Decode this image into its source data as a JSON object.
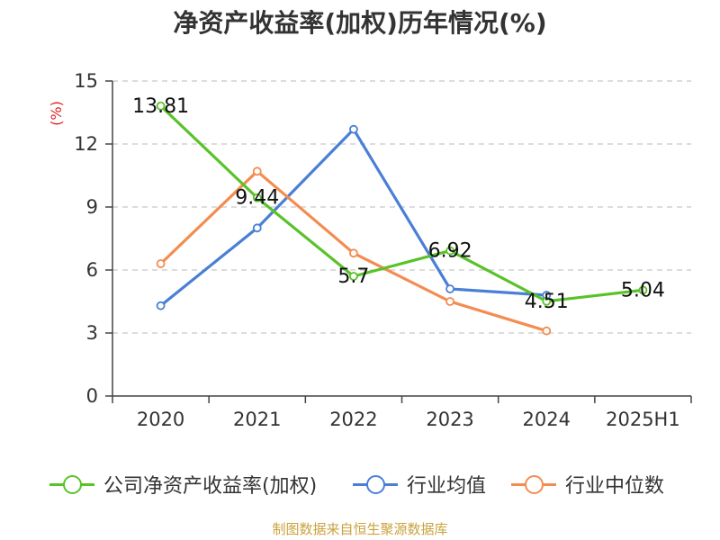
{
  "chart_data": {
    "type": "line",
    "title": "净资产收益率(加权)历年情况(%)",
    "ylabel": "(%)",
    "xlabel": "",
    "categories": [
      "2020",
      "2021",
      "2022",
      "2023",
      "2024",
      "2025H1"
    ],
    "ylim": [
      0,
      15
    ],
    "yticks": [
      0,
      3,
      6,
      9,
      12,
      15
    ],
    "grid": true,
    "legend_position": "bottom",
    "series": [
      {
        "name": "公司净资产收益率(加权)",
        "color": "#5ac229",
        "values": [
          13.81,
          9.44,
          5.7,
          6.92,
          4.51,
          5.04
        ],
        "labels": [
          "13.81",
          "9.44",
          "5.7",
          "6.92",
          "4.51",
          "5.04"
        ]
      },
      {
        "name": "行业均值",
        "color": "#4a7fd6",
        "values": [
          4.3,
          8.0,
          12.7,
          5.1,
          4.8,
          null
        ]
      },
      {
        "name": "行业中位数",
        "color": "#f48c50",
        "values": [
          6.3,
          10.7,
          6.8,
          4.5,
          3.1,
          null
        ]
      }
    ]
  },
  "source_note": "制图数据来自恒生聚源数据库"
}
